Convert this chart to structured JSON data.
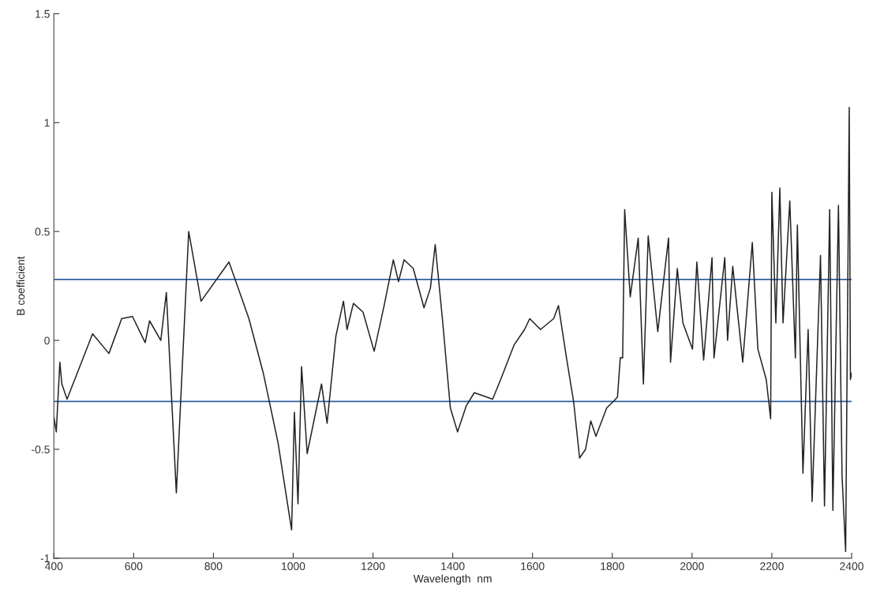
{
  "chart_data": {
    "type": "line",
    "xlabel": "Wavelength  nm",
    "ylabel": "B coefficient",
    "x": [
      400,
      406,
      415,
      420,
      433,
      497,
      538,
      570,
      597,
      629,
      640,
      668,
      682,
      707,
      738,
      769,
      839,
      889,
      925,
      962,
      996,
      1003,
      1012,
      1021,
      1035,
      1071,
      1085,
      1107,
      1126,
      1135,
      1151,
      1175,
      1203,
      1228,
      1251,
      1264,
      1278,
      1301,
      1328,
      1344,
      1356,
      1374,
      1394,
      1412,
      1434,
      1454,
      1500,
      1520,
      1554,
      1580,
      1593,
      1620,
      1653,
      1665,
      1686,
      1703,
      1718,
      1733,
      1746,
      1759,
      1786,
      1803,
      1813,
      1820,
      1826,
      1831,
      1845,
      1865,
      1878,
      1890,
      1914,
      1941,
      1946,
      1963,
      1977,
      2001,
      2012,
      2029,
      2050,
      2055,
      2082,
      2089,
      2102,
      2127,
      2151,
      2165,
      2186,
      2197,
      2200,
      2210,
      2220,
      2228,
      2245,
      2259,
      2264,
      2278,
      2291,
      2301,
      2322,
      2332,
      2345,
      2353,
      2367,
      2376,
      2385,
      2394,
      2397,
      2400
    ],
    "series": [
      {
        "color": "#222222",
        "values": [
          -0.35,
          -0.42,
          -0.1,
          -0.2,
          -0.27,
          0.03,
          -0.06,
          0.1,
          0.11,
          -0.01,
          0.09,
          0.0,
          0.22,
          -0.7,
          0.5,
          0.18,
          0.36,
          0.1,
          -0.15,
          -0.47,
          -0.87,
          -0.33,
          -0.75,
          -0.12,
          -0.52,
          -0.2,
          -0.38,
          0.02,
          0.18,
          0.05,
          0.17,
          0.13,
          -0.05,
          0.16,
          0.37,
          0.27,
          0.37,
          0.33,
          0.15,
          0.24,
          0.44,
          0.1,
          -0.31,
          -0.42,
          -0.3,
          -0.24,
          -0.27,
          -0.18,
          -0.02,
          0.05,
          0.1,
          0.05,
          0.1,
          0.16,
          -0.09,
          -0.28,
          -0.54,
          -0.5,
          -0.37,
          -0.44,
          -0.31,
          -0.28,
          -0.26,
          -0.08,
          -0.08,
          0.6,
          0.2,
          0.47,
          -0.2,
          0.48,
          0.04,
          0.47,
          -0.1,
          0.33,
          0.08,
          -0.04,
          0.36,
          -0.09,
          0.38,
          -0.08,
          0.38,
          0.0,
          0.34,
          -0.1,
          0.45,
          -0.04,
          -0.18,
          -0.36,
          0.68,
          0.08,
          0.7,
          0.08,
          0.64,
          -0.08,
          0.53,
          -0.61,
          0.05,
          -0.74,
          0.39,
          -0.76,
          0.6,
          -0.78,
          0.62,
          -0.62,
          -0.97,
          1.07,
          -0.18,
          -0.15
        ]
      }
    ],
    "xlim": [
      400,
      2400
    ],
    "ylim": [
      -1,
      1.5
    ],
    "xticks": [
      400,
      600,
      800,
      1000,
      1200,
      1400,
      1600,
      1800,
      2000,
      2200,
      2400
    ],
    "yticks": [
      -1,
      -0.5,
      0,
      0.5,
      1,
      1.5
    ],
    "ref_lines": [
      {
        "axis": "y",
        "value": 0.28,
        "color": "#2f5f9e"
      },
      {
        "axis": "y",
        "value": -0.28,
        "color": "#2f5f9e"
      }
    ],
    "grid": false
  }
}
